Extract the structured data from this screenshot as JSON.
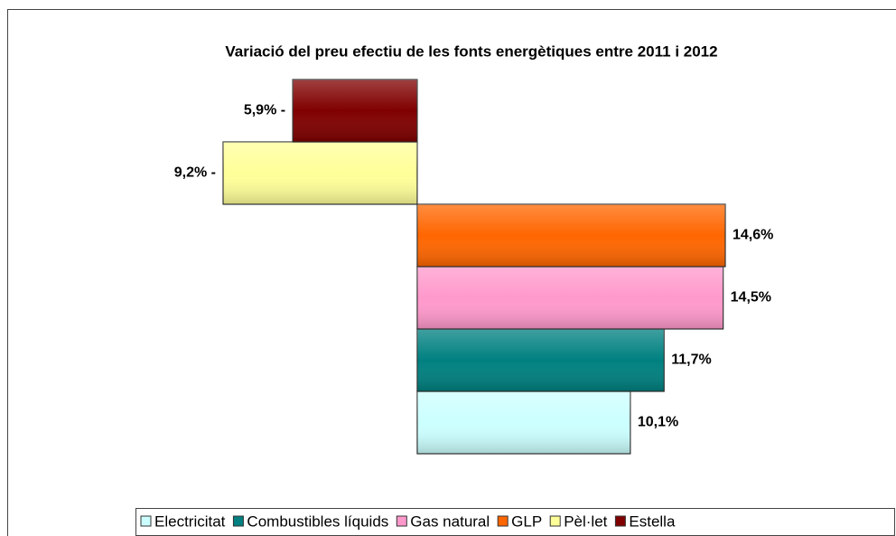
{
  "chart_data": {
    "type": "bar",
    "orientation": "horizontal",
    "title": "Variació del preu efectiu de les fonts energètiques entre 2011 i 2012",
    "series": [
      {
        "name": "Electricitat",
        "color": "#ccffff",
        "values": [
          10.1
        ],
        "value_labels": [
          "10,1%"
        ]
      },
      {
        "name": "Combustibles líquids",
        "color": "#008080",
        "values": [
          11.7
        ],
        "value_labels": [
          "11,7%"
        ]
      },
      {
        "name": "Gas natural",
        "color": "#ff99cc",
        "values": [
          14.5
        ],
        "value_labels": [
          "14,5%"
        ]
      },
      {
        "name": "GLP",
        "color": "#ff6600",
        "values": [
          14.6
        ],
        "value_labels": [
          "14,6%"
        ]
      },
      {
        "name": "Pèl·let",
        "color": "#ffff99",
        "values": [
          -9.2
        ],
        "value_labels": [
          "9,2% -"
        ]
      },
      {
        "name": "Estella",
        "color": "#800000",
        "values": [
          -5.9
        ],
        "value_labels": [
          "5,9% -"
        ]
      }
    ],
    "legend": "bottom"
  }
}
